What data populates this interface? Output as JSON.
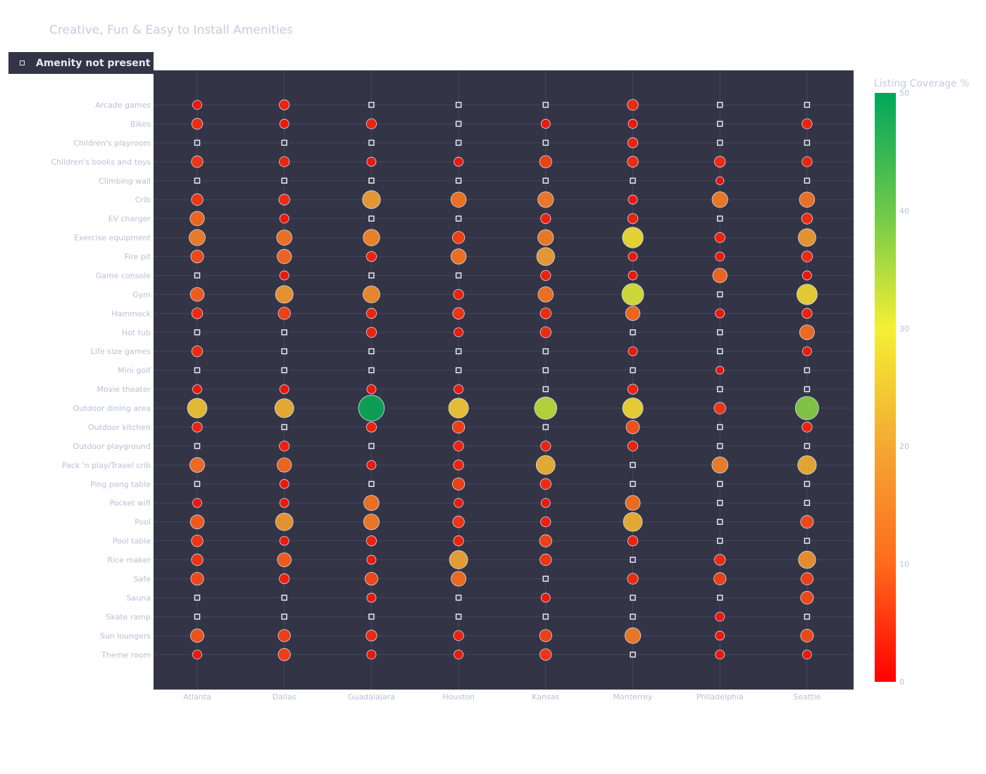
{
  "chart_data": {
    "type": "scatter",
    "title": "Creative, Fun & Easy to Install Amenities",
    "legend": {
      "entries": [
        "Amenity not present"
      ],
      "placement": "top-left"
    },
    "x_categories": [
      "Atlanta",
      "Dallas",
      "Guadalajara",
      "Houston",
      "Kansas",
      "Monterrey",
      "Philadelphia",
      "Seattle"
    ],
    "y_categories": [
      "Arcade games",
      "Bikes",
      "Children's playroom",
      "Children's books and toys",
      "Climbing wall",
      "Crib",
      "EV charger",
      "Exercise equipment",
      "Fire pit",
      "Game console",
      "Gym",
      "Hammock",
      "Hot tub",
      "Life size games",
      "Mini golf",
      "Movie theater",
      "Outdoor dining area",
      "Outdoor kitchen",
      "Outdoor playground",
      "Pack 'n play/Travel crib",
      "Ping pong table",
      "Pocket wifi",
      "Pool",
      "Pool table",
      "Rice maker",
      "Safe",
      "Sauna",
      "Skate ramp",
      "Sun loungers",
      "Theme room"
    ],
    "colorbar": {
      "title": "Listing Coverage %",
      "range": [
        0,
        50
      ],
      "ticks": [
        "0",
        "10",
        "20",
        "30",
        "40",
        "50"
      ],
      "colorscale": [
        "#ff0000",
        "#ff6a1c",
        "#f4a832",
        "#f5f033",
        "#6cc84a",
        "#00a65a"
      ]
    },
    "colors": {
      "plot_background": "#333547",
      "grid": "#43465c",
      "not_present_marker": "#e6e9f2",
      "marker_outline": "#d8dbe6"
    },
    "series_note_values_in_percent": true,
    "values": [
      [
        2,
        3,
        null,
        null,
        null,
        4,
        null,
        null
      ],
      [
        4,
        2,
        3,
        null,
        2,
        2,
        null,
        3
      ],
      [
        null,
        null,
        null,
        null,
        null,
        3,
        null,
        null
      ],
      [
        5,
        3,
        2,
        2,
        6,
        4,
        4,
        3
      ],
      [
        null,
        null,
        null,
        null,
        null,
        null,
        1,
        null
      ],
      [
        5,
        4,
        19,
        12,
        13,
        2,
        13,
        12
      ],
      [
        10,
        2,
        null,
        null,
        3,
        3,
        null,
        4
      ],
      [
        14,
        12,
        15,
        6,
        13,
        28,
        3,
        18
      ],
      [
        7,
        10,
        3,
        12,
        19,
        2,
        2,
        4
      ],
      [
        null,
        2,
        null,
        null,
        3,
        2,
        10,
        2
      ],
      [
        9,
        18,
        16,
        3,
        12,
        32,
        null,
        27
      ],
      [
        4,
        6,
        3,
        5,
        4,
        10,
        2,
        3
      ],
      [
        null,
        null,
        3,
        2,
        4,
        null,
        null,
        11
      ],
      [
        4,
        null,
        null,
        null,
        null,
        2,
        null,
        2
      ],
      [
        null,
        null,
        null,
        null,
        null,
        null,
        1,
        null
      ],
      [
        2,
        2,
        2,
        2,
        null,
        3,
        null,
        null
      ],
      [
        24,
        22,
        49,
        25,
        34,
        27,
        5,
        38
      ],
      [
        3,
        null,
        3,
        6,
        null,
        8,
        null,
        3
      ],
      [
        null,
        3,
        null,
        3,
        3,
        3,
        null,
        null
      ],
      [
        11,
        10,
        2,
        3,
        22,
        null,
        14,
        21
      ],
      [
        null,
        2,
        null,
        6,
        4,
        null,
        null,
        null
      ],
      [
        2,
        2,
        12,
        2,
        2,
        11,
        null,
        null
      ],
      [
        9,
        18,
        13,
        5,
        3,
        22,
        null,
        7
      ],
      [
        5,
        2,
        3,
        3,
        6,
        3,
        null,
        null
      ],
      [
        5,
        9,
        2,
        20,
        5,
        null,
        4,
        17
      ],
      [
        7,
        3,
        7,
        11,
        null,
        4,
        6,
        6
      ],
      [
        null,
        null,
        2,
        null,
        2,
        null,
        null,
        7
      ],
      [
        null,
        null,
        null,
        null,
        null,
        null,
        2,
        null
      ],
      [
        8,
        6,
        4,
        3,
        6,
        13,
        2,
        7
      ],
      [
        2,
        6,
        2,
        2,
        5,
        null,
        2,
        2
      ]
    ]
  }
}
